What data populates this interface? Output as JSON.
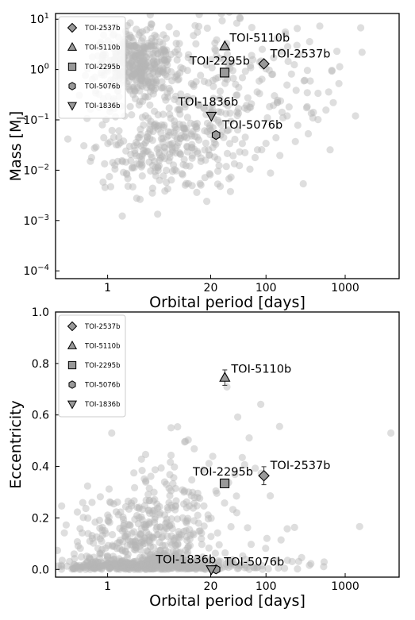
{
  "chart_data": [
    {
      "type": "scatter",
      "xlabel": "Orbital period [days]",
      "ylabel_text": "Mass [M",
      "ylabel_sub": "J",
      "ylabel_close": "]",
      "xscale": "log",
      "yscale": "log",
      "xlim": [
        0.22,
        4800
      ],
      "ylim": [
        7e-05,
        13
      ],
      "xticks": [
        {
          "value": 1,
          "label": "1"
        },
        {
          "value": 20,
          "label": "20"
        },
        {
          "value": 100,
          "label": "100"
        },
        {
          "value": 1000,
          "label": "1000"
        }
      ],
      "yticks": [
        {
          "value": 0.0001,
          "base": "10",
          "exp": "−4"
        },
        {
          "value": 0.001,
          "base": "10",
          "exp": "−3"
        },
        {
          "value": 0.01,
          "base": "10",
          "exp": "−2"
        },
        {
          "value": 0.1,
          "base": "10",
          "exp": "−1"
        },
        {
          "value": 1,
          "base": "10",
          "exp": "0"
        },
        {
          "value": 10,
          "base": "10",
          "exp": "1"
        }
      ],
      "grid": false,
      "legend_position": "top-left",
      "background_color": "#b5b5b5",
      "highlight_color": "#999999",
      "highlights": [
        {
          "name": "TOI-2537b",
          "marker": "diamond",
          "x": 94.1,
          "y": 1.3,
          "label_dx": 8,
          "label_dy": -8
        },
        {
          "name": "TOI-5110b",
          "marker": "triangle-up",
          "x": 30.2,
          "y": 2.9,
          "label_dx": 6,
          "label_dy": -6
        },
        {
          "name": "TOI-2295b",
          "marker": "square",
          "x": 30.0,
          "y": 0.87,
          "label_dx": -44,
          "label_dy": -10
        },
        {
          "name": "TOI-5076b",
          "marker": "hexagon",
          "x": 23.4,
          "y": 0.05,
          "label_dx": 8,
          "label_dy": -8
        },
        {
          "name": "TOI-1836b",
          "marker": "triangle-down",
          "x": 20.4,
          "y": 0.12,
          "label_dx": -42,
          "label_dy": -13
        }
      ]
    },
    {
      "type": "scatter",
      "xlabel": "Orbital period [days]",
      "ylabel": "Eccentricity",
      "xscale": "log",
      "yscale": "linear",
      "xlim": [
        0.22,
        4800
      ],
      "ylim": [
        -0.03,
        1.0
      ],
      "xticks": [
        {
          "value": 1,
          "label": "1"
        },
        {
          "value": 20,
          "label": "20"
        },
        {
          "value": 100,
          "label": "100"
        },
        {
          "value": 1000,
          "label": "1000"
        }
      ],
      "yticks": [
        {
          "value": 0,
          "label": "0.0"
        },
        {
          "value": 0.2,
          "label": "0.2"
        },
        {
          "value": 0.4,
          "label": "0.4"
        },
        {
          "value": 0.6,
          "label": "0.6"
        },
        {
          "value": 0.8,
          "label": "0.8"
        },
        {
          "value": 1.0,
          "label": "1.0"
        }
      ],
      "grid": false,
      "legend_position": "top-left",
      "background_color": "#b5b5b5",
      "highlight_color": "#999999",
      "highlights": [
        {
          "name": "TOI-2537b",
          "marker": "diamond",
          "x": 94.1,
          "y": 0.364,
          "err": 0.035,
          "label_dx": 8,
          "label_dy": -8
        },
        {
          "name": "TOI-5110b",
          "marker": "triangle-up",
          "x": 30.2,
          "y": 0.745,
          "err": 0.03,
          "label_dx": 8,
          "label_dy": -6
        },
        {
          "name": "TOI-2295b",
          "marker": "square",
          "x": 30.0,
          "y": 0.334,
          "err": 0.015,
          "label_dx": -40,
          "label_dy": -10
        },
        {
          "name": "TOI-5076b",
          "marker": "hexagon",
          "x": 23.4,
          "y": 0.0,
          "label_dx": 10,
          "label_dy": -5
        },
        {
          "name": "TOI-1836b",
          "marker": "triangle-down",
          "x": 20.4,
          "y": 0.0,
          "label_dx": -70,
          "label_dy": -8
        }
      ]
    }
  ]
}
